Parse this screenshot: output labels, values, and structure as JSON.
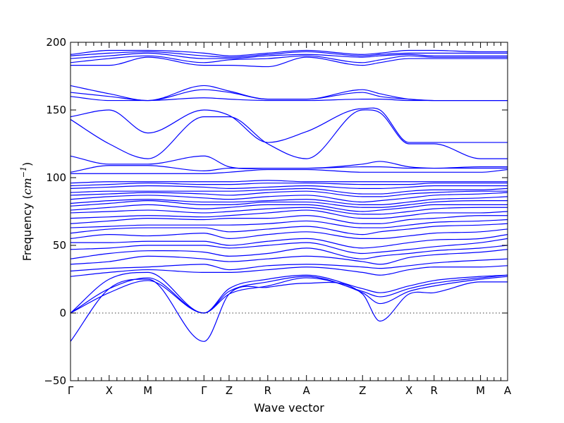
{
  "chart_data": {
    "type": "line",
    "title": "",
    "xlabel": "Wave vector",
    "ylabel_prefix": "Frequency (",
    "ylabel_unit_base": "cm",
    "ylabel_unit_exp": "−1",
    "ylabel_suffix": ")",
    "ylim": [
      -50,
      200
    ],
    "yticks": [
      -50,
      0,
      50,
      100,
      150,
      200
    ],
    "ytick_labels": [
      "−50",
      "0",
      "50",
      "100",
      "150",
      "200"
    ],
    "xlim": [
      0,
      11.3
    ],
    "high_symmetry_points": [
      {
        "label": "Γ",
        "x": 0
      },
      {
        "label": "X",
        "x": 1.0
      },
      {
        "label": "M",
        "x": 2.0
      },
      {
        "label": "Γ",
        "x": 3.45
      },
      {
        "label": "Z",
        "x": 4.1
      },
      {
        "label": "R",
        "x": 5.1
      },
      {
        "label": "A",
        "x": 6.1
      },
      {
        "label": "Z",
        "x": 7.55
      },
      {
        "label": "X",
        "x": 8.75
      },
      {
        "label": "R",
        "x": 9.4
      },
      {
        "label": "M",
        "x": 10.6
      },
      {
        "label": "A",
        "x": 11.3
      }
    ],
    "zero_line": true,
    "grid": false,
    "legend": "none",
    "series_color": "#0000ff",
    "band_anchor_x": [
      0,
      1.0,
      2.0,
      3.45,
      4.1,
      5.1,
      6.1,
      7.55,
      8.0,
      8.75,
      9.4,
      10.6,
      11.3
    ],
    "bands": [
      [
        -21,
        18,
        25,
        -21,
        14,
        19,
        22,
        14,
        -6,
        14,
        15,
        23,
        23
      ],
      [
        0,
        15,
        24,
        0,
        14,
        20,
        26,
        15,
        7,
        16,
        20,
        25,
        27
      ],
      [
        0,
        18,
        26,
        0,
        16,
        23,
        27,
        16,
        12,
        18,
        22,
        26,
        28
      ],
      [
        0,
        25,
        30,
        0,
        18,
        25,
        28,
        18,
        15,
        20,
        24,
        27,
        28
      ],
      [
        27,
        30,
        32,
        30,
        30,
        32,
        34,
        30,
        28,
        32,
        34,
        34,
        35
      ],
      [
        31,
        33,
        34,
        36,
        32,
        35,
        36,
        34,
        33,
        35,
        37,
        39,
        40
      ],
      [
        36,
        38,
        42,
        40,
        38,
        40,
        42,
        38,
        36,
        41,
        43,
        45,
        47
      ],
      [
        40,
        44,
        46,
        45,
        42,
        44,
        48,
        40,
        42,
        44,
        46,
        48,
        50
      ],
      [
        47,
        48,
        50,
        50,
        48,
        50,
        52,
        44,
        45,
        47,
        49,
        52,
        55
      ],
      [
        52,
        52,
        53,
        53,
        50,
        53,
        55,
        48,
        49,
        52,
        54,
        55,
        58
      ],
      [
        55,
        58,
        57,
        59,
        55,
        58,
        60,
        55,
        55,
        57,
        59,
        60,
        62
      ],
      [
        59,
        62,
        63,
        63,
        60,
        62,
        64,
        58,
        60,
        62,
        64,
        65,
        66
      ],
      [
        63,
        64,
        65,
        65,
        65,
        66,
        68,
        63,
        63,
        65,
        67,
        68,
        69
      ],
      [
        66,
        68,
        70,
        69,
        70,
        70,
        72,
        66,
        66,
        69,
        70,
        72,
        72
      ],
      [
        70,
        71,
        72,
        71,
        72,
        74,
        76,
        70,
        70,
        72,
        74,
        74,
        75
      ],
      [
        74,
        75,
        76,
        74,
        75,
        77,
        78,
        73,
        73,
        75,
        77,
        78,
        78
      ],
      [
        76,
        78,
        80,
        77,
        78,
        80,
        80,
        75,
        76,
        78,
        80,
        80,
        80
      ],
      [
        79,
        81,
        83,
        80,
        80,
        82,
        82,
        78,
        78,
        80,
        82,
        83,
        83
      ],
      [
        81,
        83,
        84,
        82,
        82,
        83,
        84,
        80,
        80,
        82,
        84,
        85,
        86
      ],
      [
        84,
        86,
        87,
        85,
        84,
        86,
        87,
        82,
        83,
        85,
        87,
        88,
        89
      ],
      [
        87,
        88,
        89,
        88,
        87,
        89,
        90,
        86,
        86,
        88,
        89,
        90,
        90
      ],
      [
        89,
        90,
        90,
        90,
        90,
        91,
        92,
        88,
        88,
        90,
        91,
        91,
        92
      ],
      [
        92,
        93,
        94,
        93,
        92,
        93,
        94,
        92,
        92,
        93,
        94,
        94,
        94
      ],
      [
        94,
        95,
        96,
        95,
        95,
        96,
        96,
        95,
        95,
        95,
        96,
        96,
        96
      ],
      [
        96,
        97,
        97,
        97,
        97,
        98,
        97,
        97,
        97,
        97,
        97,
        97,
        97
      ],
      [
        103,
        103,
        103,
        103,
        104,
        106,
        106,
        104,
        104,
        104,
        104,
        104,
        106
      ],
      [
        104,
        109,
        109,
        105,
        107,
        107,
        107,
        108,
        108,
        107,
        107,
        107,
        107
      ],
      [
        116,
        110,
        110,
        116,
        108,
        107,
        107,
        110,
        112,
        108,
        107,
        108,
        108
      ],
      [
        143,
        125,
        114,
        145,
        145,
        125,
        114,
        150,
        148,
        125,
        125,
        114,
        114
      ],
      [
        145,
        150,
        133,
        150,
        146,
        126,
        134,
        151,
        150,
        126,
        126,
        126,
        126
      ],
      [
        160,
        157,
        157,
        159,
        158,
        157,
        157,
        158,
        158,
        157,
        157,
        157,
        157
      ],
      [
        163,
        160,
        157,
        165,
        163,
        158,
        158,
        163,
        160,
        158,
        157,
        157,
        157
      ],
      [
        168,
        162,
        157,
        168,
        164,
        158,
        158,
        165,
        162,
        158,
        157,
        157,
        157
      ],
      [
        183,
        183,
        189,
        183,
        183,
        182,
        189,
        183,
        185,
        188,
        188,
        188,
        188
      ],
      [
        185,
        188,
        190,
        185,
        187,
        188,
        190,
        185,
        187,
        190,
        189,
        189,
        189
      ],
      [
        188,
        190,
        192,
        188,
        188,
        190,
        191,
        189,
        190,
        191,
        190,
        190,
        190
      ],
      [
        190,
        192,
        193,
        190,
        189,
        191,
        193,
        190,
        191,
        192,
        192,
        192,
        192
      ],
      [
        191,
        194,
        194,
        192,
        190,
        192,
        194,
        191,
        192,
        194,
        194,
        193,
        193
      ]
    ]
  }
}
